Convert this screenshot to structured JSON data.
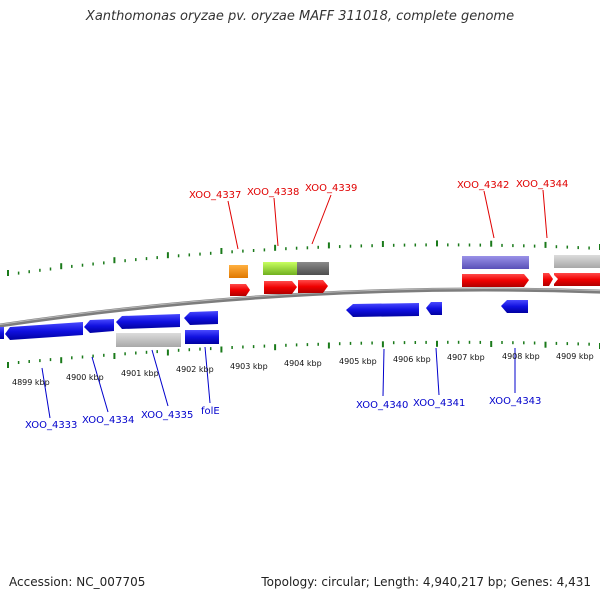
{
  "title": "Xanthomonas oryzae pv. oryzae MAFF 311018, complete genome",
  "footer": {
    "accession": "Accession: NC_007705",
    "summary": "Topology: circular; Length: 4,940,217 bp; Genes: 4,431"
  },
  "colors": {
    "top_gene_label": "#e00000",
    "bottom_gene_label": "#0000cc",
    "tick": "#1a7a1a",
    "backbone": "#808080"
  },
  "scale": {
    "labels": [
      "4899 kbp",
      "4900 kbp",
      "4901 kbp",
      "4902 kbp",
      "4903 kbp",
      "4904 kbp",
      "4905 kbp",
      "4906 kbp",
      "4907 kbp",
      "4908 kbp",
      "4909 kbp"
    ]
  },
  "top_gene_labels": [
    "XOO_4337",
    "XOO_4338",
    "XOO_4339",
    "XOO_4342",
    "XOO_4344"
  ],
  "bottom_gene_labels": [
    "XOO_4333",
    "XOO_4334",
    "XOO_4335",
    "folE",
    "XOO_4340",
    "XOO_4341",
    "XOO_4343"
  ]
}
